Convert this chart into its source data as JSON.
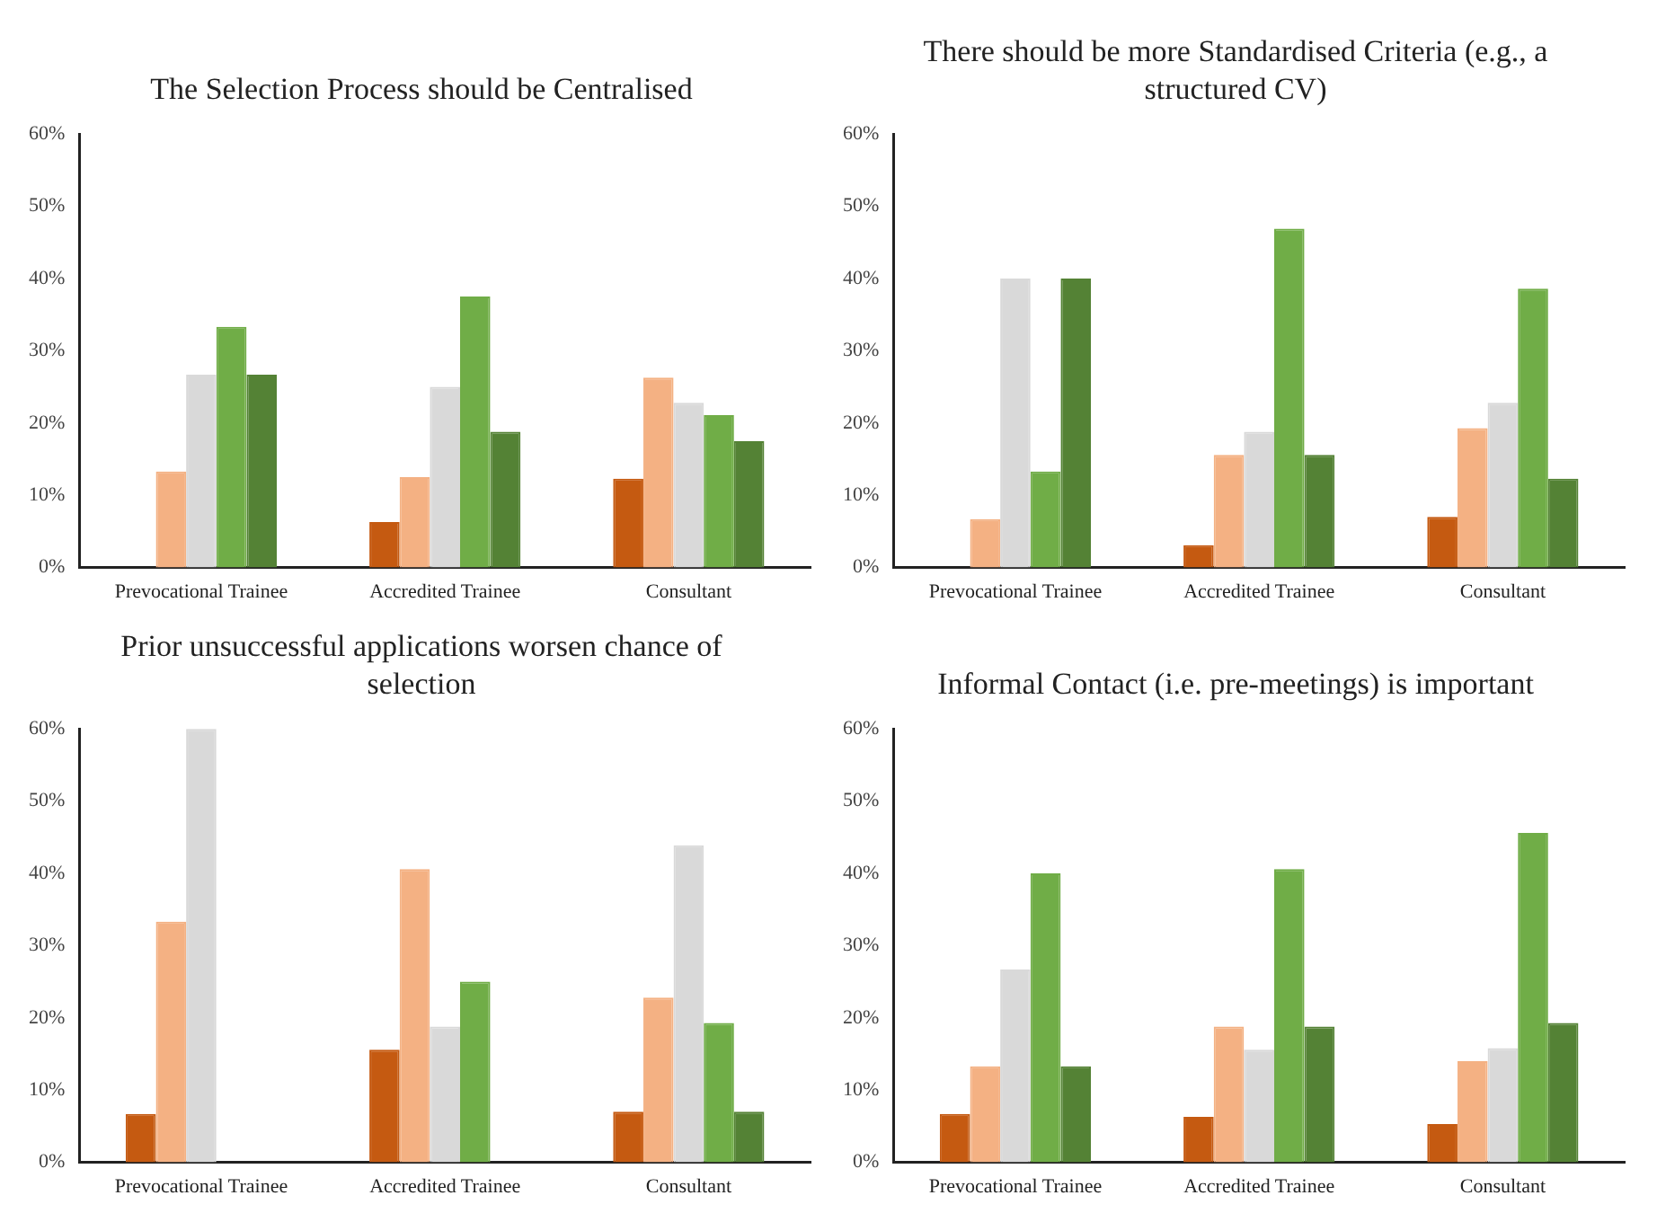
{
  "chart_data": [
    {
      "type": "bar",
      "title": "The Selection Process should be Centralised",
      "categories": [
        "Prevocational Trainee",
        "Accredited Trainee",
        "Consultant"
      ],
      "ylim": [
        0,
        60
      ],
      "yticks": [
        {
          "value": 0,
          "label": "0%"
        },
        {
          "value": 10,
          "label": "10%"
        },
        {
          "value": 20,
          "label": "20%"
        },
        {
          "value": 30,
          "label": "30%"
        },
        {
          "value": 40,
          "label": "40%"
        },
        {
          "value": 50,
          "label": "50%"
        },
        {
          "value": 60,
          "label": "60%"
        }
      ],
      "grid": false,
      "legend": false,
      "series": [
        {
          "color": "#c55a11",
          "values": [
            0,
            6.3,
            12.3
          ]
        },
        {
          "color": "#f4b183",
          "values": [
            13.3,
            12.5,
            26.3
          ]
        },
        {
          "color": "#d9d9d9",
          "values": [
            26.7,
            25,
            22.8
          ]
        },
        {
          "color": "#70ad47",
          "values": [
            33.3,
            37.5,
            21.1
          ]
        },
        {
          "color": "#548235",
          "values": [
            26.7,
            18.8,
            17.5
          ]
        }
      ]
    },
    {
      "type": "bar",
      "title": "There should be more Standardised Criteria (e.g., a structured CV)",
      "categories": [
        "Prevocational Trainee",
        "Accredited Trainee",
        "Consultant"
      ],
      "ylim": [
        0,
        60
      ],
      "yticks": [
        {
          "value": 0,
          "label": "0%"
        },
        {
          "value": 10,
          "label": "10%"
        },
        {
          "value": 20,
          "label": "20%"
        },
        {
          "value": 30,
          "label": "30%"
        },
        {
          "value": 40,
          "label": "40%"
        },
        {
          "value": 50,
          "label": "50%"
        },
        {
          "value": 60,
          "label": "60%"
        }
      ],
      "grid": false,
      "legend": false,
      "series": [
        {
          "color": "#c55a11",
          "values": [
            0,
            3.1,
            7
          ]
        },
        {
          "color": "#f4b183",
          "values": [
            6.7,
            15.6,
            19.3
          ]
        },
        {
          "color": "#d9d9d9",
          "values": [
            40,
            18.8,
            22.8
          ]
        },
        {
          "color": "#70ad47",
          "values": [
            13.3,
            46.9,
            38.6
          ]
        },
        {
          "color": "#548235",
          "values": [
            40,
            15.6,
            12.3
          ]
        }
      ]
    },
    {
      "type": "bar",
      "title": "Prior unsuccessful applications worsen chance of selection",
      "categories": [
        "Prevocational Trainee",
        "Accredited Trainee",
        "Consultant"
      ],
      "ylim": [
        0,
        60
      ],
      "yticks": [
        {
          "value": 0,
          "label": "0%"
        },
        {
          "value": 10,
          "label": "10%"
        },
        {
          "value": 20,
          "label": "20%"
        },
        {
          "value": 30,
          "label": "30%"
        },
        {
          "value": 40,
          "label": "40%"
        },
        {
          "value": 50,
          "label": "50%"
        },
        {
          "value": 60,
          "label": "60%"
        }
      ],
      "grid": false,
      "legend": false,
      "series": [
        {
          "color": "#c55a11",
          "values": [
            6.7,
            15.6,
            7
          ]
        },
        {
          "color": "#f4b183",
          "values": [
            33.3,
            40.6,
            22.8
          ]
        },
        {
          "color": "#d9d9d9",
          "values": [
            60,
            18.8,
            43.9
          ]
        },
        {
          "color": "#70ad47",
          "values": [
            0,
            25,
            19.3
          ]
        },
        {
          "color": "#548235",
          "values": [
            0,
            0,
            7
          ]
        }
      ]
    },
    {
      "type": "bar",
      "title": "Informal Contact (i.e. pre-meetings) is important",
      "categories": [
        "Prevocational Trainee",
        "Accredited Trainee",
        "Consultant"
      ],
      "ylim": [
        0,
        60
      ],
      "yticks": [
        {
          "value": 0,
          "label": "0%"
        },
        {
          "value": 10,
          "label": "10%"
        },
        {
          "value": 20,
          "label": "20%"
        },
        {
          "value": 30,
          "label": "30%"
        },
        {
          "value": 40,
          "label": "40%"
        },
        {
          "value": 50,
          "label": "50%"
        },
        {
          "value": 60,
          "label": "60%"
        }
      ],
      "grid": false,
      "legend": false,
      "series": [
        {
          "color": "#c55a11",
          "values": [
            6.7,
            6.3,
            5.3
          ]
        },
        {
          "color": "#f4b183",
          "values": [
            13.3,
            18.8,
            14
          ]
        },
        {
          "color": "#d9d9d9",
          "values": [
            26.7,
            15.6,
            15.8
          ]
        },
        {
          "color": "#70ad47",
          "values": [
            40,
            40.6,
            45.6
          ]
        },
        {
          "color": "#548235",
          "values": [
            13.3,
            18.8,
            19.3
          ]
        }
      ]
    }
  ]
}
